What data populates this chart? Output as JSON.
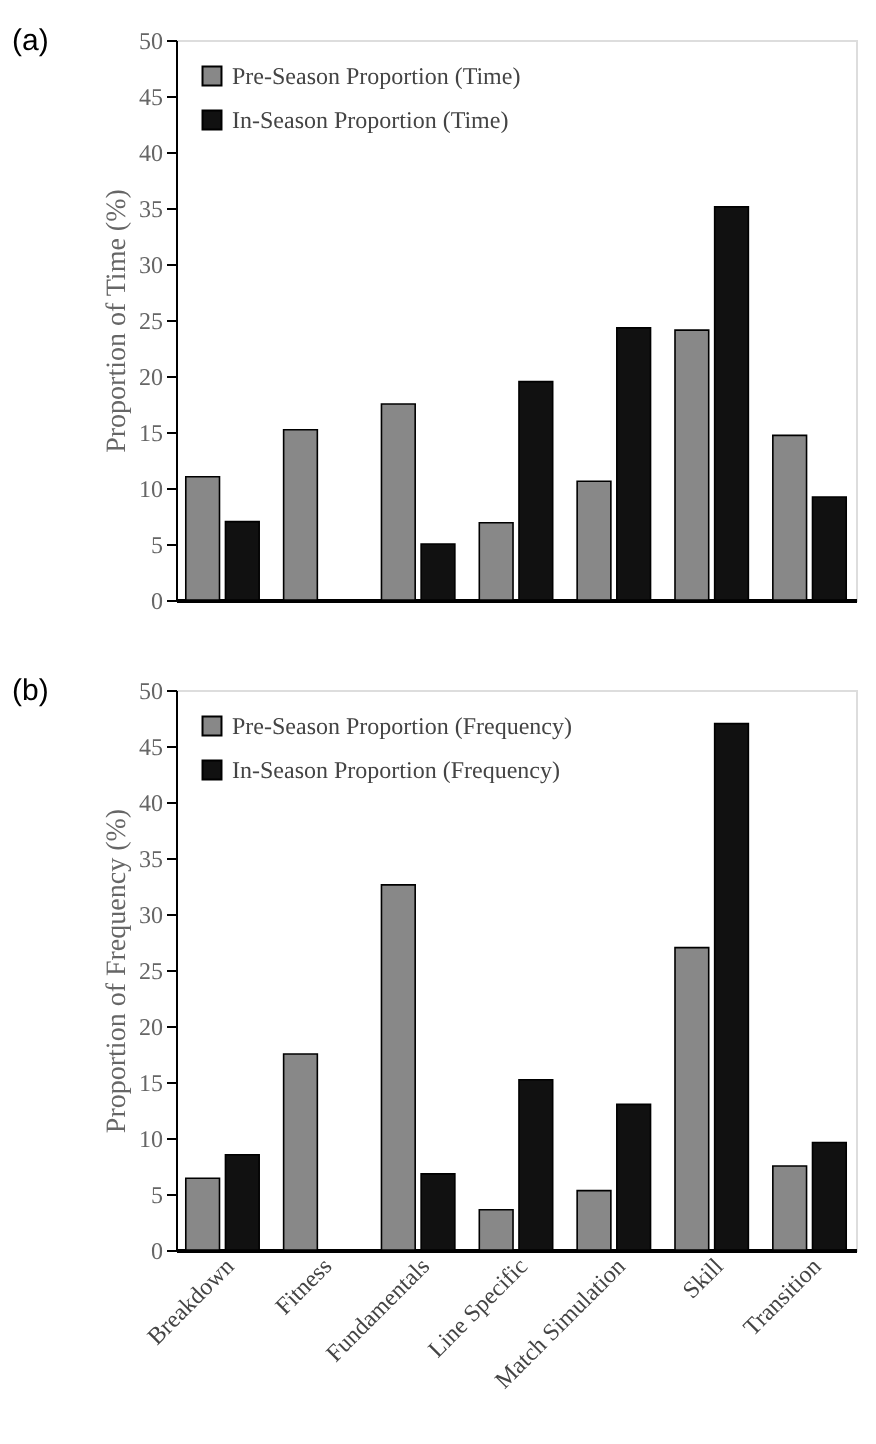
{
  "chart_data": [
    {
      "type": "bar",
      "title": "(a)",
      "ylabel": "Proportion of Time (%)",
      "categories": [
        null,
        null,
        null,
        null,
        null,
        null,
        null
      ],
      "series": [
        {
          "name": "Pre-Season Proportion (Time)",
          "color": "#888888",
          "values": [
            11,
            15.2,
            17.5,
            6.9,
            10.6,
            24.1,
            14.7
          ]
        },
        {
          "name": "In-Season Proportion (Time)",
          "color": "#111111",
          "values": [
            7,
            null,
            5,
            19.5,
            24.3,
            35.1,
            9.2
          ]
        }
      ],
      "ylim": [
        0,
        50
      ],
      "yticks": [
        0,
        5,
        10,
        15,
        20,
        25,
        30,
        35,
        40,
        45,
        50
      ],
      "legend": "top left",
      "tick_labels": "y",
      "grid": false
    },
    {
      "type": "bar",
      "title": "(b)",
      "ylabel": "Proportion of Frequency (%)",
      "categories": [
        "Breakdown",
        "Fitness",
        "Fundamentals",
        "Line Specific",
        "Match Simulation",
        "Skill",
        "Transition"
      ],
      "series": [
        {
          "name": "Pre-Season Proportion (Frequency)",
          "color": "#888888",
          "values": [
            6.4,
            17.5,
            32.6,
            3.6,
            5.3,
            27,
            7.5
          ]
        },
        {
          "name": "In-Season Proportion (Frequency)",
          "color": "#111111",
          "values": [
            8.5,
            null,
            6.8,
            15.2,
            13,
            47,
            9.6
          ]
        }
      ],
      "ylim": [
        0,
        50
      ],
      "yticks": [
        0,
        5,
        10,
        15,
        20,
        25,
        30,
        35,
        40,
        45,
        50
      ],
      "legend": "top left",
      "grid": false
    }
  ]
}
